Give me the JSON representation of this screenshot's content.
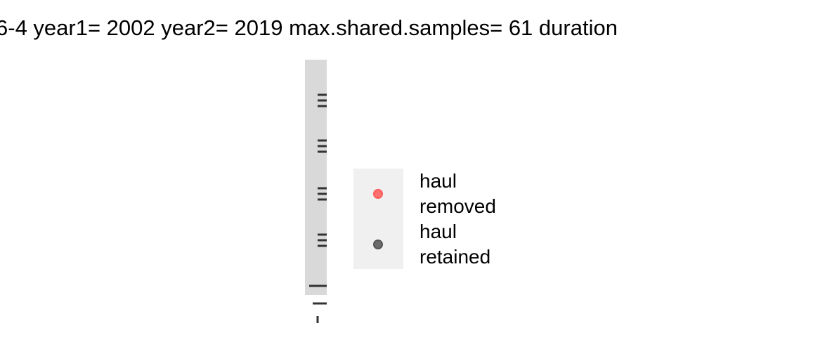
{
  "title": "6-4 year1= 2002 year2= 2019 max.shared.samples= 61 duration",
  "legend": {
    "entries": [
      {
        "label": "haul removed",
        "color": "#ff5a5a"
      },
      {
        "label": "haul retained",
        "color": "#555555"
      }
    ]
  }
}
